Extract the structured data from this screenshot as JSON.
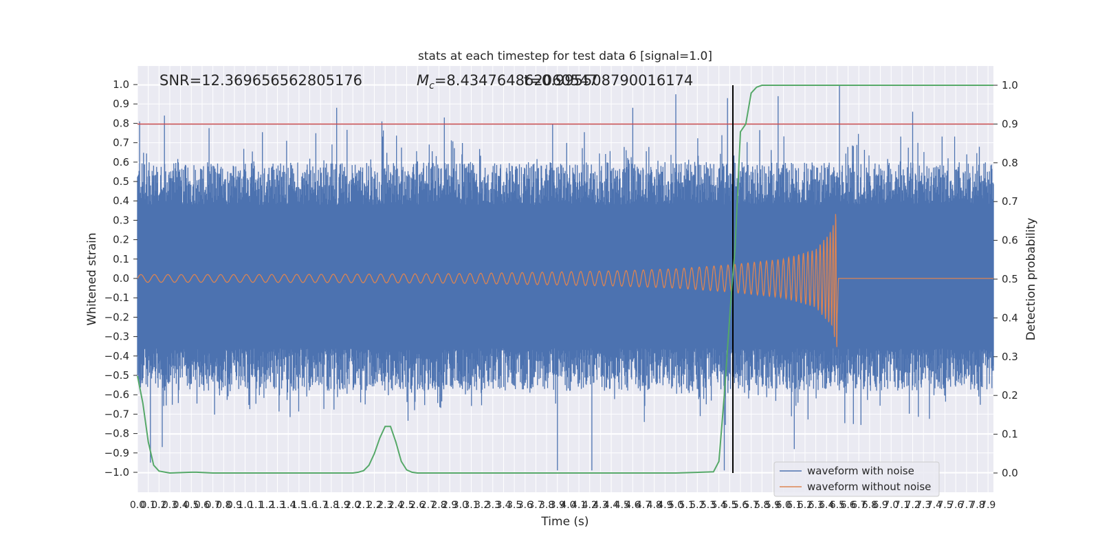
{
  "chart_data": {
    "type": "line",
    "title": "stats at each timestep for test data 6 [signal=1.0]",
    "xlabel": "Time (s)",
    "ylabel": "Whitened strain",
    "y2label": "Detection probability",
    "xlim": [
      0.0,
      7.95
    ],
    "ylim": [
      -1.1,
      1.1
    ],
    "y2lim": [
      -0.05,
      1.03
    ],
    "xticks": [
      0.0,
      0.1,
      0.2,
      0.3,
      0.4,
      0.5,
      0.6,
      0.7,
      0.8,
      0.9,
      1.0,
      1.1,
      1.2,
      1.3,
      1.4,
      1.5,
      1.6,
      1.7,
      1.8,
      1.9,
      2.0,
      2.1,
      2.2,
      2.3,
      2.4,
      2.5,
      2.6,
      2.7,
      2.8,
      2.9,
      3.0,
      3.1,
      3.2,
      3.3,
      3.4,
      3.5,
      3.6,
      3.7,
      3.8,
      3.9,
      4.0,
      4.1,
      4.2,
      4.3,
      4.4,
      4.5,
      4.6,
      4.7,
      4.8,
      4.9,
      5.0,
      5.1,
      5.2,
      5.3,
      5.4,
      5.5,
      5.6,
      5.7,
      5.8,
      5.9,
      6.0,
      6.1,
      6.2,
      6.3,
      6.4,
      6.5,
      6.6,
      6.7,
      6.8,
      6.9,
      7.0,
      7.1,
      7.2,
      7.3,
      7.4,
      7.5,
      7.6,
      7.7,
      7.8,
      7.9
    ],
    "xtick_labels": [
      "0.0",
      "0.1",
      "0.2",
      "0.3",
      "0.4",
      "0.5",
      "0.6",
      "0.7",
      "0.8",
      "0.9",
      "1.0",
      "1.1",
      "1.2",
      "1.3",
      "1.4",
      "1.5",
      "1.6",
      "1.7",
      "1.8",
      "1.9",
      "2.0",
      "2.1",
      "2.2",
      "2.3",
      "2.4",
      "2.5",
      "2.6",
      "2.7",
      "2.8",
      "2.9",
      "3.0",
      "3.1",
      "3.2",
      "3.3",
      "3.4",
      "3.5",
      "3.6",
      "3.7",
      "3.8",
      "3.9",
      "4.0",
      "4.1",
      "4.2",
      "4.3",
      "4.4",
      "4.5",
      "4.6",
      "4.7",
      "4.8",
      "4.9",
      "5.0",
      "5.1",
      "5.2",
      "5.3",
      "5.4",
      "5.5",
      "5.6",
      "5.7",
      "5.8",
      "5.9",
      "6.0",
      "6.1",
      "6.2",
      "6.3",
      "6.4",
      "6.5",
      "6.6",
      "6.7",
      "6.8",
      "6.9",
      "7.0",
      "7.1",
      "7.2",
      "7.3",
      "7.4",
      "7.5",
      "7.6",
      "7.7",
      "7.8",
      "7.9"
    ],
    "yticks": [
      1.0,
      0.9,
      0.8,
      0.7,
      0.6,
      0.5,
      0.4,
      0.3,
      0.2,
      0.1,
      0.0,
      -0.1,
      -0.2,
      -0.3,
      -0.4,
      -0.5,
      -0.6,
      -0.7,
      -0.8,
      -0.9,
      -1.0
    ],
    "ytick_labels": [
      "1.0",
      "0.9",
      "0.8",
      "0.7",
      "0.6",
      "0.5",
      "0.4",
      "0.3",
      "0.2",
      "0.1",
      "0.0",
      "−0.1",
      "−0.2",
      "−0.3",
      "−0.4",
      "−0.5",
      "−0.6",
      "−0.7",
      "−0.8",
      "−0.9",
      "−1.0"
    ],
    "y2ticks": [
      1.0,
      0.9,
      0.8,
      0.7,
      0.6,
      0.5,
      0.4,
      0.3,
      0.2,
      0.1,
      0.0
    ],
    "y2tick_labels": [
      "1.0",
      "0.9",
      "0.8",
      "0.7",
      "0.6",
      "0.5",
      "0.4",
      "0.3",
      "0.2",
      "0.1",
      "0.0"
    ],
    "grid": true,
    "legend_position": "lower right",
    "annotations": {
      "snr": "SNR=12.369656562805176",
      "mc_symbol": "M",
      "mc_sub": "c",
      "mc_value": "=8.434764862060547",
      "overlap_text": "t=0.995508790016174"
    },
    "series": [
      {
        "name": "waveform with noise",
        "color": "#4c72b0",
        "description_points": "dense noise, roughly ±0.4 to ±0.8 with spikes to ±1.0",
        "spikes": [
          [
            0.02,
            0.81
          ],
          [
            0.12,
            -0.95
          ],
          [
            0.25,
            0.84
          ],
          [
            0.23,
            -0.87
          ],
          [
            1.85,
            0.88
          ],
          [
            2.27,
            0.81
          ],
          [
            2.85,
            0.83
          ],
          [
            3.9,
            -0.99
          ],
          [
            4.22,
            -0.99
          ],
          [
            4.6,
            0.88
          ],
          [
            5.0,
            0.95
          ],
          [
            5.45,
            -0.99
          ],
          [
            5.48,
            0.93
          ],
          [
            5.95,
            0.94
          ],
          [
            6.52,
            1.0
          ],
          [
            6.1,
            -0.88
          ],
          [
            7.2,
            0.86
          ]
        ]
      },
      {
        "name": "waveform without noise",
        "color": "#dd8452",
        "envelope": [
          [
            0.0,
            0.02
          ],
          [
            1.0,
            0.02
          ],
          [
            2.0,
            0.022
          ],
          [
            3.0,
            0.025
          ],
          [
            3.5,
            0.03
          ],
          [
            4.0,
            0.035
          ],
          [
            4.5,
            0.04
          ],
          [
            5.0,
            0.05
          ],
          [
            5.5,
            0.07
          ],
          [
            6.0,
            0.1
          ],
          [
            6.3,
            0.15
          ],
          [
            6.45,
            0.25
          ],
          [
            6.5,
            0.38
          ],
          [
            6.51,
            0.0
          ],
          [
            7.95,
            0.0
          ]
        ]
      },
      {
        "name": "detection probability",
        "color": "#55a868",
        "axis": "right",
        "x": [
          0.0,
          0.05,
          0.1,
          0.15,
          0.2,
          0.3,
          0.5,
          0.55,
          0.7,
          1.0,
          1.5,
          2.0,
          2.05,
          2.1,
          2.15,
          2.2,
          2.25,
          2.3,
          2.35,
          2.4,
          2.45,
          2.5,
          2.55,
          2.6,
          2.7,
          3.0,
          4.0,
          5.0,
          5.35,
          5.4,
          5.45,
          5.5,
          5.52,
          5.55,
          5.6,
          5.65,
          5.7,
          5.75,
          5.8,
          5.9,
          6.0,
          7.95
        ],
        "values": [
          0.25,
          0.18,
          0.08,
          0.02,
          0.005,
          0.0,
          0.002,
          0.002,
          0.0,
          0.0,
          0.0,
          0.0,
          0.002,
          0.006,
          0.02,
          0.05,
          0.09,
          0.12,
          0.12,
          0.08,
          0.03,
          0.008,
          0.002,
          0.0,
          0.0,
          0.0,
          0.0,
          0.0,
          0.003,
          0.03,
          0.2,
          0.4,
          0.48,
          0.58,
          0.88,
          0.9,
          0.98,
          0.995,
          1.0,
          1.0,
          1.0,
          1.0
        ]
      }
    ],
    "hlines": [
      {
        "y2": 0.9,
        "color": "#c44e52"
      }
    ],
    "vlines": [
      {
        "x": 5.53,
        "color": "#000000"
      }
    ]
  }
}
